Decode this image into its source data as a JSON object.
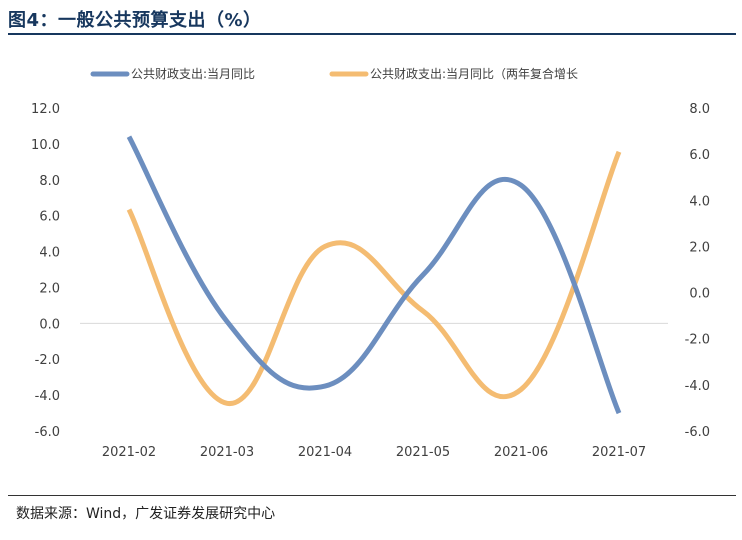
{
  "header": {
    "title": "图4：一般公共预算支出（%）"
  },
  "footer": {
    "source": "数据来源：Wind，广发证券发展研究中心"
  },
  "colors": {
    "series1": "#6c8ebf",
    "series2": "#f4bc72",
    "title": "#17375e"
  },
  "chart_data": {
    "type": "line",
    "categories": [
      "2021-02",
      "2021-03",
      "2021-04",
      "2021-05",
      "2021-06",
      "2021-07"
    ],
    "series": [
      {
        "name": "公共财政支出:当月同比",
        "axis": "left",
        "values": [
          10.4,
          0.1,
          -3.5,
          2.7,
          7.7,
          -5.0
        ]
      },
      {
        "name": "公共财政支出:当月同比（两年复合增长",
        "axis": "right",
        "values": [
          3.6,
          -4.8,
          2.0,
          -0.8,
          -4.2,
          6.1
        ]
      }
    ],
    "y_left": {
      "min": -6,
      "max": 12,
      "ticks": [
        "12.0",
        "10.0",
        "8.0",
        "6.0",
        "4.0",
        "2.0",
        "0.0",
        "-2.0",
        "-4.0",
        "-6.0"
      ]
    },
    "y_right": {
      "min": -6,
      "max": 8,
      "ticks": [
        "8.0",
        "6.0",
        "4.0",
        "2.0",
        "0.0",
        "-2.0",
        "-4.0",
        "-6.0"
      ]
    },
    "legend_position": "top",
    "grid": false
  }
}
